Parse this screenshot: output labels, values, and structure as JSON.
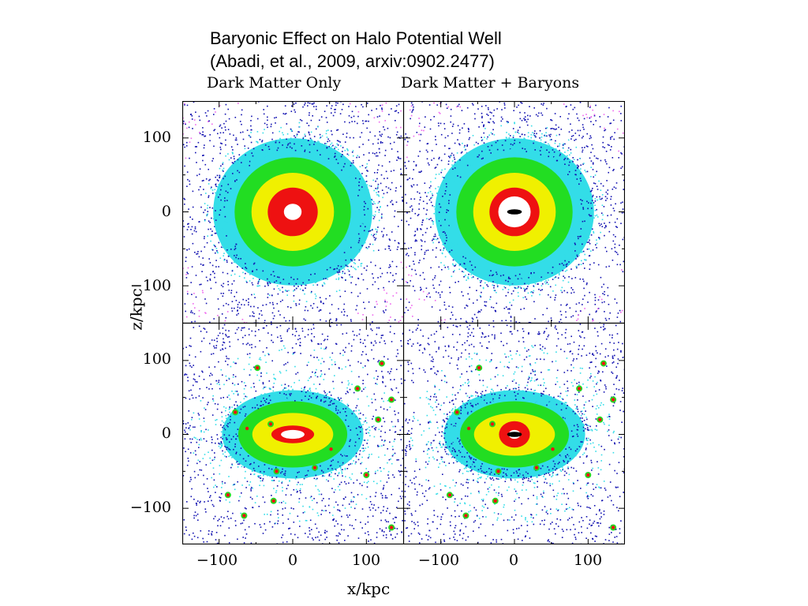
{
  "title": {
    "line1": "Baryonic Effect on Halo Potential Well",
    "line2": "(Abadi, et al., 2009, arxiv:0902.2477)"
  },
  "figure": {
    "column_headings": [
      "Dark Matter Only",
      "Dark Matter + Baryons"
    ],
    "xlabel": "x/kpc",
    "ylabel": "z/kpc",
    "y_ticks": [
      "100",
      "0",
      "−100"
    ],
    "x_ticks": [
      "−100",
      "0",
      "100"
    ],
    "xlim": [
      -150,
      150
    ],
    "ylim": [
      -150,
      150
    ],
    "colors": {
      "background": "#ffffff",
      "sparse": "#1010b0",
      "low": "#33dde8",
      "mid": "#22dd22",
      "high": "#f0f000",
      "peak": "#ee1111",
      "core": "#ffffff",
      "edge": "#ee66ee",
      "baryons": "#000000"
    },
    "panels": [
      {
        "name": "top-left",
        "shape": "round",
        "baryons": false
      },
      {
        "name": "top-right",
        "shape": "round",
        "baryons": true
      },
      {
        "name": "bottom-left",
        "shape": "flattened",
        "baryons": false
      },
      {
        "name": "bottom-right",
        "shape": "flattened",
        "baryons": true
      }
    ]
  }
}
